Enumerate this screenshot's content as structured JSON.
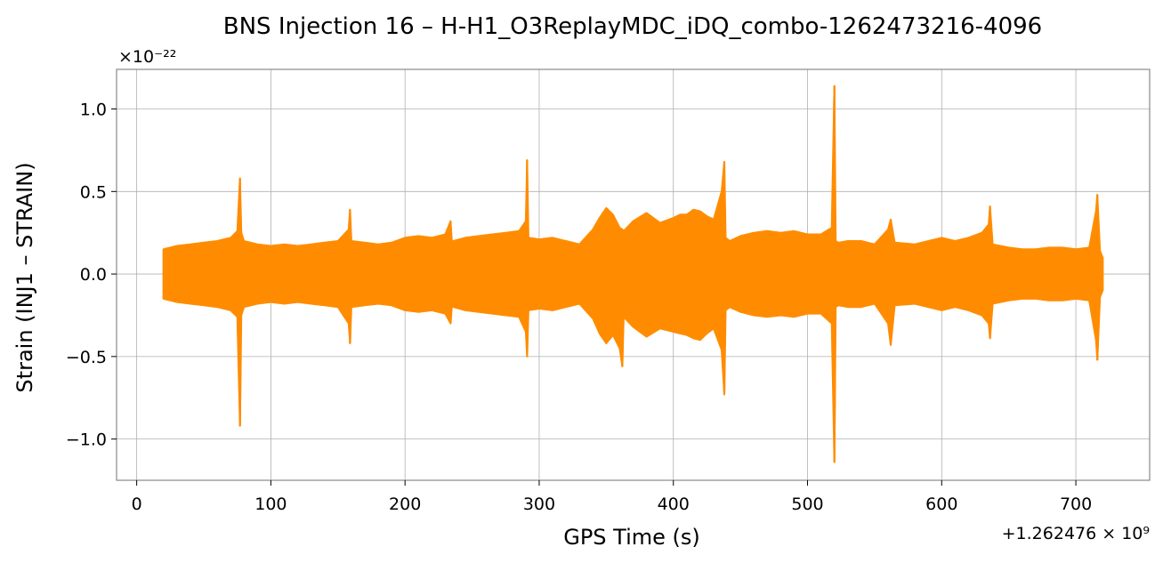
{
  "chart_data": {
    "type": "line",
    "title": "BNS Injection 16 – H-H1_O3ReplayMDC_iDQ_combo-1262473216-4096",
    "xlabel": "GPS Time (s)",
    "ylabel": "Strain (INJ1 – STRAIN)",
    "x_offset_label": "+1.262476 × 10⁹",
    "y_scale_label": "×10⁻²²",
    "xlim": [
      -15,
      755
    ],
    "ylim": [
      -1.25,
      1.24
    ],
    "x_ticks": [
      0,
      100,
      200,
      300,
      400,
      500,
      600,
      700
    ],
    "x_tick_labels": [
      "0",
      "100",
      "200",
      "300",
      "400",
      "500",
      "600",
      "700"
    ],
    "y_ticks": [
      -1.0,
      -0.5,
      0.0,
      0.5,
      1.0
    ],
    "y_tick_labels": [
      "−1.0",
      "−0.5",
      "0.0",
      "0.5",
      "1.0"
    ],
    "grid": true,
    "color": "#ff8c00",
    "series": [
      {
        "x": [
          20,
          30,
          40,
          50,
          60,
          70,
          75,
          77,
          78,
          80,
          90,
          100,
          110,
          120,
          130,
          140,
          150,
          158,
          159,
          160,
          170,
          180,
          190,
          200,
          210,
          220,
          230,
          234,
          235,
          236,
          245,
          255,
          265,
          275,
          285,
          290,
          291,
          292,
          300,
          310,
          320,
          330,
          340,
          345,
          350,
          355,
          360,
          362,
          363,
          370,
          380,
          390,
          400,
          405,
          410,
          415,
          420,
          425,
          430,
          436,
          438,
          439,
          442,
          450,
          460,
          470,
          480,
          490,
          500,
          510,
          518,
          520,
          521,
          523,
          530,
          540,
          550,
          560,
          562,
          565,
          580,
          600,
          610,
          620,
          630,
          635,
          636,
          638,
          650,
          660,
          670,
          680,
          690,
          700,
          710,
          715,
          716,
          718,
          720
        ],
        "y_upper": [
          0.15,
          0.17,
          0.18,
          0.19,
          0.2,
          0.22,
          0.26,
          0.58,
          0.25,
          0.2,
          0.18,
          0.17,
          0.18,
          0.17,
          0.18,
          0.19,
          0.2,
          0.27,
          0.39,
          0.2,
          0.19,
          0.18,
          0.19,
          0.22,
          0.23,
          0.22,
          0.24,
          0.32,
          0.19,
          0.2,
          0.22,
          0.23,
          0.24,
          0.25,
          0.26,
          0.32,
          0.69,
          0.22,
          0.21,
          0.22,
          0.2,
          0.18,
          0.27,
          0.34,
          0.4,
          0.36,
          0.28,
          0.27,
          0.26,
          0.32,
          0.37,
          0.31,
          0.34,
          0.36,
          0.36,
          0.39,
          0.38,
          0.35,
          0.33,
          0.5,
          0.68,
          0.22,
          0.2,
          0.23,
          0.25,
          0.26,
          0.25,
          0.26,
          0.24,
          0.24,
          0.28,
          1.14,
          0.2,
          0.19,
          0.2,
          0.2,
          0.18,
          0.27,
          0.33,
          0.19,
          0.18,
          0.22,
          0.2,
          0.22,
          0.25,
          0.3,
          0.41,
          0.18,
          0.16,
          0.15,
          0.15,
          0.16,
          0.16,
          0.15,
          0.16,
          0.38,
          0.48,
          0.14,
          0.1
        ],
        "y_lower": [
          -0.15,
          -0.17,
          -0.18,
          -0.19,
          -0.2,
          -0.22,
          -0.26,
          -0.92,
          -0.25,
          -0.2,
          -0.18,
          -0.17,
          -0.18,
          -0.17,
          -0.18,
          -0.19,
          -0.2,
          -0.3,
          -0.42,
          -0.2,
          -0.19,
          -0.18,
          -0.19,
          -0.22,
          -0.23,
          -0.22,
          -0.24,
          -0.3,
          -0.19,
          -0.2,
          -0.22,
          -0.23,
          -0.24,
          -0.25,
          -0.26,
          -0.35,
          -0.5,
          -0.22,
          -0.21,
          -0.22,
          -0.2,
          -0.18,
          -0.27,
          -0.36,
          -0.42,
          -0.37,
          -0.45,
          -0.56,
          -0.26,
          -0.32,
          -0.38,
          -0.33,
          -0.35,
          -0.36,
          -0.37,
          -0.39,
          -0.4,
          -0.36,
          -0.33,
          -0.46,
          -0.73,
          -0.22,
          -0.2,
          -0.23,
          -0.25,
          -0.26,
          -0.25,
          -0.26,
          -0.24,
          -0.24,
          -0.3,
          -1.14,
          -0.2,
          -0.19,
          -0.2,
          -0.2,
          -0.18,
          -0.3,
          -0.43,
          -0.19,
          -0.18,
          -0.22,
          -0.2,
          -0.22,
          -0.25,
          -0.3,
          -0.39,
          -0.18,
          -0.16,
          -0.15,
          -0.15,
          -0.16,
          -0.16,
          -0.15,
          -0.16,
          -0.4,
          -0.52,
          -0.14,
          -0.1
        ]
      }
    ]
  }
}
